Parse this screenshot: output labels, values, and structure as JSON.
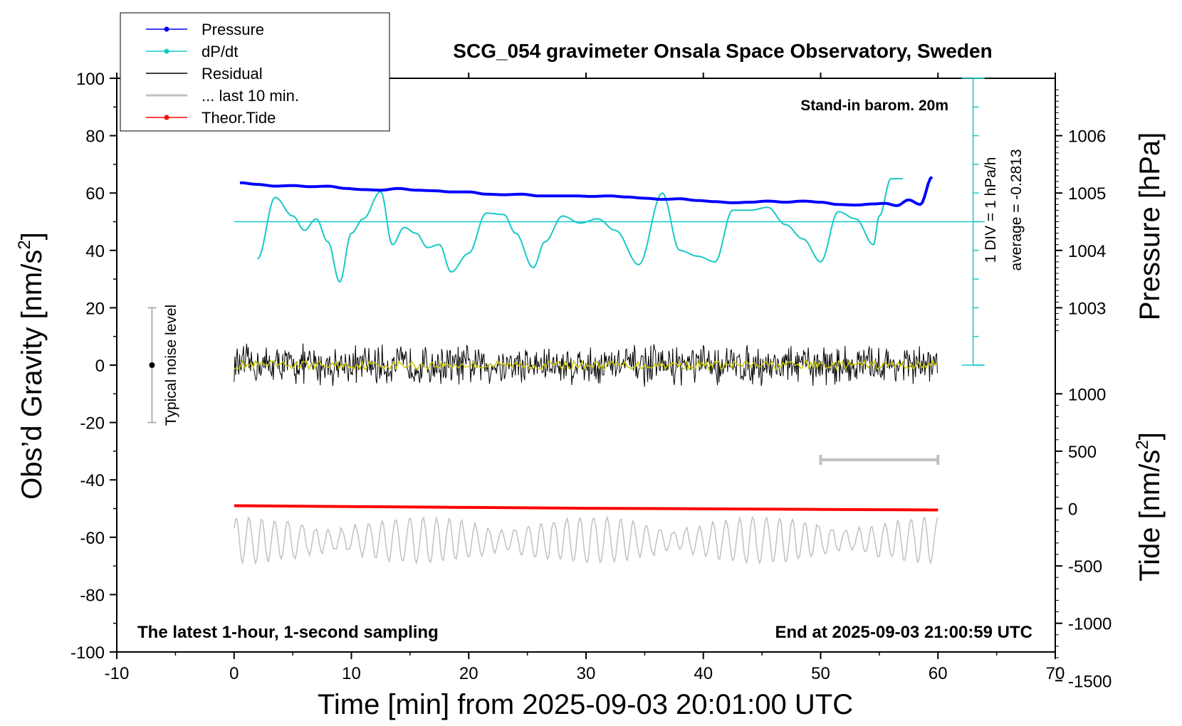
{
  "chart_data": {
    "type": "line",
    "title": "SCG_054 gravimeter Onsala Space Observatory, Sweden",
    "xlabel": "Time [min] from 2025-09-03 20:01:00 UTC",
    "ylabel_left_main": "Obs’d Gravity [nm/s",
    "ylabel_left_sup": "2",
    "ylabel_left_end": "]",
    "ylabel_right_upper": "Pressure [hPa]",
    "ylabel_right_lower_main": "Tide [nm/s",
    "ylabel_right_lower_sup": "2",
    "ylabel_right_lower_end": "]",
    "xlim": [
      -10,
      70
    ],
    "ylim_left": [
      -100,
      100
    ],
    "pressure_axis": {
      "ticks": [
        1003,
        1004,
        1005,
        1006
      ],
      "labels": [
        "1003",
        "1004",
        "1005",
        "1006"
      ]
    },
    "tide_axis": {
      "ticks": [
        1000,
        500,
        0,
        -500,
        -1000,
        -1500
      ],
      "labels": [
        "1000",
        "500",
        "0",
        "-500",
        "-1000",
        "-1500"
      ]
    },
    "x_ticks": [
      "-10",
      "0",
      "10",
      "20",
      "30",
      "40",
      "50",
      "60",
      "70"
    ],
    "y_ticks": [
      "100",
      "80",
      "60",
      "40",
      "20",
      "0",
      "-20",
      "-40",
      "-60",
      "-80",
      "-100"
    ],
    "legend": {
      "placement": "top-left",
      "entries": [
        {
          "label": "Pressure",
          "color": "#0000ff",
          "marker": true
        },
        {
          "label": "dP/dt",
          "color": "#19c8c8",
          "marker": true
        },
        {
          "label": "Residual",
          "color": "#000000",
          "marker": false
        },
        {
          "label": "... last 10 min.",
          "color": "#c0c0c0",
          "marker": false
        },
        {
          "label": "Theor.Tide",
          "color": "#ff0000",
          "marker": true
        }
      ]
    },
    "annotations": {
      "stand_in": "Stand-in barom. 20m",
      "div_label": "1 DIV = 1 hPa/h",
      "average_label": "average = -0.2813",
      "noise_label": "Typical noise level",
      "bottom_left": "The latest 1-hour, 1-second sampling",
      "bottom_right": "End at 2025-09-03 21:00:59 UTC"
    },
    "noise_bar": {
      "x": -7,
      "y_low": -20,
      "y_high": 20,
      "center": 0
    },
    "ten_min_bar": {
      "x_start": 50,
      "x_end": 60,
      "y": -33
    },
    "colors": {
      "pressure": "#0000ff",
      "dpdt": "#19c8c8",
      "residual": "#000000",
      "residual_smooth": "#c8c800",
      "last10": "#c0c0c0",
      "tide": "#ff0000"
    },
    "series": [
      {
        "name": "Pressure",
        "unit": "hPa",
        "x": [
          0.5,
          2,
          3.5,
          5,
          6.5,
          8,
          9.5,
          11,
          12.5,
          14,
          15.5,
          17,
          18.5,
          20,
          21.5,
          23,
          24.5,
          26,
          27.5,
          29,
          30.5,
          32,
          33.5,
          35,
          36.5,
          38,
          39.5,
          41,
          42.5,
          44,
          45.5,
          47,
          48.5,
          50,
          51.5,
          53,
          54.5,
          55.5,
          56.5,
          57.5,
          58.5,
          59.5
        ],
        "y": [
          1005.18,
          1005.15,
          1005.12,
          1005.13,
          1005.11,
          1005.12,
          1005.08,
          1005.06,
          1005.05,
          1005.08,
          1005.05,
          1005.04,
          1005.02,
          1005.02,
          1004.98,
          1004.97,
          1004.98,
          1004.95,
          1004.95,
          1004.95,
          1004.94,
          1004.95,
          1004.93,
          1004.91,
          1004.89,
          1004.9,
          1004.87,
          1004.85,
          1004.83,
          1004.84,
          1004.86,
          1004.84,
          1004.86,
          1004.84,
          1004.8,
          1004.79,
          1004.81,
          1004.82,
          1004.78,
          1004.88,
          1004.8,
          1005.28
        ]
      },
      {
        "name": "dP/dt",
        "unit": "hPa/h",
        "x": [
          2,
          3.5,
          5,
          6,
          7,
          8,
          9,
          10,
          11,
          12.5,
          13.5,
          14.5,
          15.5,
          16.5,
          17.5,
          18.5,
          20,
          21.5,
          23,
          24,
          25.5,
          26.5,
          28,
          29.5,
          31,
          32.5,
          34.5,
          36.5,
          38,
          39.5,
          41,
          42.5,
          44,
          45.5,
          47,
          48.5,
          50,
          51.5,
          53,
          54.5,
          55,
          56,
          57
        ],
        "y": [
          -1.3,
          0.85,
          0.2,
          -0.3,
          0.1,
          -0.7,
          -2.1,
          -0.4,
          0.1,
          1.05,
          -0.8,
          -0.2,
          -0.4,
          -0.9,
          -0.8,
          -1.75,
          -1.1,
          0.3,
          0.25,
          -0.4,
          -1.6,
          -0.7,
          0.2,
          -0.05,
          0.1,
          -0.3,
          -1.5,
          1.0,
          -1.0,
          -1.2,
          -1.4,
          0.4,
          0.4,
          0.5,
          -0.1,
          -0.6,
          -1.4,
          0.35,
          0.1,
          -0.8,
          0.2,
          1.5,
          1.5
        ]
      },
      {
        "name": "Residual",
        "unit": "nm/s2",
        "x_range": [
          0,
          60
        ],
        "level": 0,
        "peak_amplitude": 8
      },
      {
        "name": "... last 10 min.",
        "unit": "nm/s2",
        "x_range": [
          0,
          60
        ],
        "level": -61,
        "peak_amplitude": 8
      },
      {
        "name": "Theor.Tide",
        "unit": "nm/s2",
        "x": [
          0,
          10,
          20,
          30,
          40,
          50,
          60
        ],
        "y": [
          -49,
          -49.3,
          -49.6,
          -49.9,
          -50.1,
          -50.3,
          -50.5
        ]
      }
    ]
  }
}
